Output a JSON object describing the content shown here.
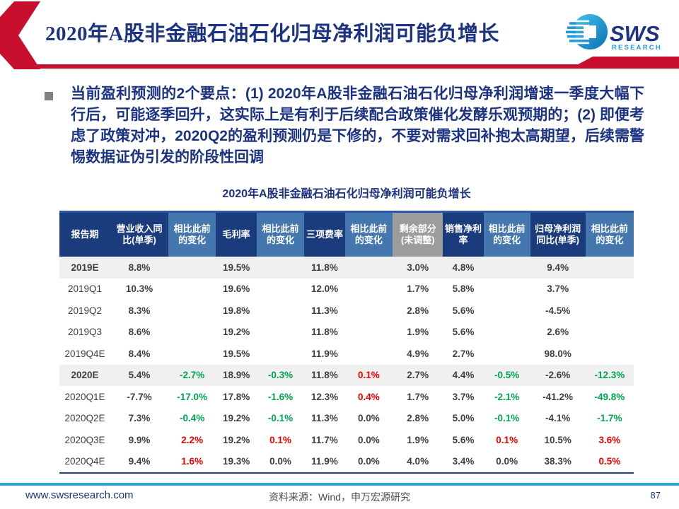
{
  "header": {
    "title": "2020年A股非金融石油石化归母净利润可能负增长",
    "logo": {
      "text": "SWS",
      "subtext": "RESEARCH"
    }
  },
  "key_points": {
    "text": "当前盈利预测的2个要点：(1) 2020年A股非金融石油石化归母净利润增速一季度大幅下行后，可能逐季回升，这实际上是有利于后续配合政策催化发酵乐观预期的；(2) 即便考虑了政策对冲，2020Q2的盈利预测仍是下修的，不要对需求回补抱太高期望，后续需警惕数据证伪引发的阶段性回调"
  },
  "table": {
    "title": "2020年A股非金融石油石化归母净利润可能负增长",
    "columns": [
      {
        "label": "报告期",
        "style": "dark",
        "width": 8.9
      },
      {
        "label": "营业收入同比(单季)",
        "style": "dark",
        "width": 10.2
      },
      {
        "label": "相比此前的变化",
        "style": "mid",
        "width": 8.3
      },
      {
        "label": "毛利率",
        "style": "dark",
        "width": 7.0
      },
      {
        "label": "相比此前的变化",
        "style": "mid",
        "width": 8.3
      },
      {
        "label": "三项费率",
        "style": "dark",
        "width": 7.0
      },
      {
        "label": "相比此前的变化",
        "style": "mid",
        "width": 8.3
      },
      {
        "label": "剩余部分(未调整)",
        "style": "gray",
        "width": 8.8
      },
      {
        "label": "销售净利率",
        "style": "dark",
        "width": 7.0
      },
      {
        "label": "相比此前的变化",
        "style": "mid",
        "width": 8.1
      },
      {
        "label": "归母净利润同比(单季)",
        "style": "dark",
        "width": 9.7
      },
      {
        "label": "相比此前的变化",
        "style": "mid",
        "width": 8.4
      }
    ],
    "rows": [
      {
        "period": "2019E",
        "bold": true,
        "highlight": true,
        "values": [
          {
            "v": "8.8%"
          },
          {
            "v": ""
          },
          {
            "v": "19.5%"
          },
          {
            "v": ""
          },
          {
            "v": "11.8%"
          },
          {
            "v": ""
          },
          {
            "v": "3.0%"
          },
          {
            "v": "4.8%"
          },
          {
            "v": ""
          },
          {
            "v": "9.4%"
          },
          {
            "v": ""
          }
        ]
      },
      {
        "period": "2019Q1",
        "bold": false,
        "highlight": false,
        "values": [
          {
            "v": "10.3%"
          },
          {
            "v": ""
          },
          {
            "v": "19.6%"
          },
          {
            "v": ""
          },
          {
            "v": "12.0%"
          },
          {
            "v": ""
          },
          {
            "v": "1.7%"
          },
          {
            "v": "5.8%"
          },
          {
            "v": ""
          },
          {
            "v": "3.7%"
          },
          {
            "v": ""
          }
        ]
      },
      {
        "period": "2019Q2",
        "bold": false,
        "highlight": false,
        "values": [
          {
            "v": "8.3%"
          },
          {
            "v": ""
          },
          {
            "v": "19.8%"
          },
          {
            "v": ""
          },
          {
            "v": "11.3%"
          },
          {
            "v": ""
          },
          {
            "v": "2.8%"
          },
          {
            "v": "5.6%"
          },
          {
            "v": ""
          },
          {
            "v": "-4.5%"
          },
          {
            "v": ""
          }
        ]
      },
      {
        "period": "2019Q3",
        "bold": false,
        "highlight": false,
        "values": [
          {
            "v": "8.6%"
          },
          {
            "v": ""
          },
          {
            "v": "19.2%"
          },
          {
            "v": ""
          },
          {
            "v": "11.8%"
          },
          {
            "v": ""
          },
          {
            "v": "1.9%"
          },
          {
            "v": "5.6%"
          },
          {
            "v": ""
          },
          {
            "v": "2.6%"
          },
          {
            "v": ""
          }
        ]
      },
      {
        "period": "2019Q4E",
        "bold": false,
        "highlight": false,
        "values": [
          {
            "v": "8.4%"
          },
          {
            "v": ""
          },
          {
            "v": "19.5%"
          },
          {
            "v": ""
          },
          {
            "v": "11.9%"
          },
          {
            "v": ""
          },
          {
            "v": "4.9%"
          },
          {
            "v": "2.7%"
          },
          {
            "v": ""
          },
          {
            "v": "98.0%"
          },
          {
            "v": ""
          }
        ]
      },
      {
        "period": "2020E",
        "bold": true,
        "highlight": true,
        "values": [
          {
            "v": "5.4%"
          },
          {
            "v": "-2.7%",
            "c": "green"
          },
          {
            "v": "18.9%"
          },
          {
            "v": "-0.3%",
            "c": "green"
          },
          {
            "v": "11.8%"
          },
          {
            "v": "0.1%",
            "c": "red"
          },
          {
            "v": "2.7%"
          },
          {
            "v": "4.4%"
          },
          {
            "v": "-0.5%",
            "c": "green"
          },
          {
            "v": "-2.6%"
          },
          {
            "v": "-12.3%",
            "c": "green"
          }
        ]
      },
      {
        "period": "2020Q1E",
        "bold": false,
        "highlight": false,
        "values": [
          {
            "v": "-7.7%"
          },
          {
            "v": "-17.0%",
            "c": "green"
          },
          {
            "v": "17.8%"
          },
          {
            "v": "-1.6%",
            "c": "green"
          },
          {
            "v": "12.3%"
          },
          {
            "v": "0.4%",
            "c": "red"
          },
          {
            "v": "1.7%"
          },
          {
            "v": "3.7%"
          },
          {
            "v": "-2.1%",
            "c": "green"
          },
          {
            "v": "-41.2%"
          },
          {
            "v": "-49.8%",
            "c": "green"
          }
        ]
      },
      {
        "period": "2020Q2E",
        "bold": false,
        "highlight": false,
        "values": [
          {
            "v": "7.3%"
          },
          {
            "v": "-0.4%",
            "c": "green"
          },
          {
            "v": "19.2%"
          },
          {
            "v": "-0.1%",
            "c": "green"
          },
          {
            "v": "11.3%"
          },
          {
            "v": "0.0%"
          },
          {
            "v": "2.8%"
          },
          {
            "v": "5.0%"
          },
          {
            "v": "-0.1%",
            "c": "green"
          },
          {
            "v": "-4.1%"
          },
          {
            "v": "-1.7%",
            "c": "green"
          }
        ]
      },
      {
        "period": "2020Q3E",
        "bold": false,
        "highlight": false,
        "values": [
          {
            "v": "9.9%"
          },
          {
            "v": "2.2%",
            "c": "red"
          },
          {
            "v": "19.2%"
          },
          {
            "v": "0.1%",
            "c": "red"
          },
          {
            "v": "11.7%"
          },
          {
            "v": "0.0%"
          },
          {
            "v": "1.9%"
          },
          {
            "v": "5.6%"
          },
          {
            "v": "0.1%",
            "c": "red"
          },
          {
            "v": "10.5%"
          },
          {
            "v": "3.6%",
            "c": "red"
          }
        ]
      },
      {
        "period": "2020Q4E",
        "bold": false,
        "highlight": false,
        "values": [
          {
            "v": "9.4%"
          },
          {
            "v": "1.6%",
            "c": "red"
          },
          {
            "v": "19.3%"
          },
          {
            "v": "0.0%"
          },
          {
            "v": "11.9%"
          },
          {
            "v": "0.0%"
          },
          {
            "v": "4.0%"
          },
          {
            "v": "3.4%"
          },
          {
            "v": "0.0%"
          },
          {
            "v": "38.3%"
          },
          {
            "v": "0.5%",
            "c": "red"
          }
        ]
      }
    ]
  },
  "footer": {
    "website": "www.swsresearch.com",
    "source": "资料来源：Wind，申万宏源研究",
    "page": "87"
  },
  "colors": {
    "accent_red": "#C8102E",
    "navy": "#1B3380",
    "table_header_dark": "#1A3C7D",
    "table_header_mid": "#4377AE",
    "table_header_gray": "#9C9C9C",
    "highlight_row": "#F0F0F0",
    "value_green": "#00A551",
    "value_red": "#EE0000",
    "footer_line_blue": "#2AA9E0",
    "logo_blue": "#1E9CD7"
  }
}
